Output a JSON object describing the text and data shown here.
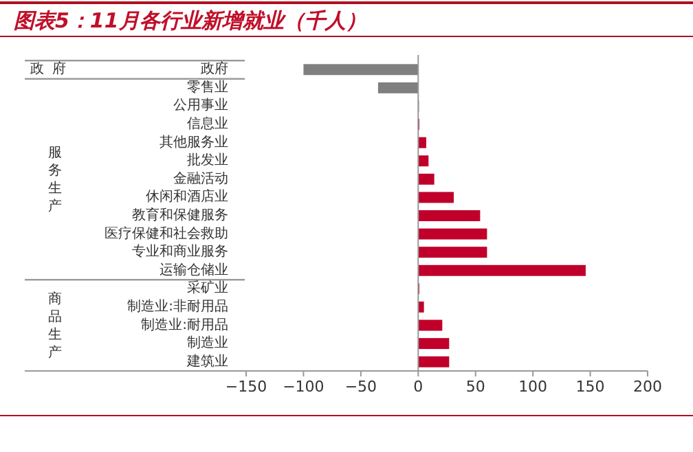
{
  "chart_data": {
    "type": "bar",
    "orientation": "horizontal",
    "title": "图表5：11月各行业新增就业（千人）",
    "categories": [
      "政府",
      "零售业",
      "公用事业",
      "信息业",
      "其他服务业",
      "批发业",
      "金融活动",
      "休闲和酒店业",
      "教育和保健服务",
      "医疗保健和社会救助",
      "专业和商业服务",
      "运输仓储业",
      "采矿业",
      "制造业:非耐用品",
      "制造业:耐用品",
      "制造业",
      "建筑业"
    ],
    "values": [
      -100,
      -35,
      0,
      1,
      7,
      9,
      14,
      31,
      54,
      60,
      60,
      146,
      1,
      5,
      21,
      27,
      27
    ],
    "colors": [
      "#7f7f7f",
      "#7f7f7f",
      "#7f7f7f",
      "#c0002a",
      "#c0002a",
      "#c0002a",
      "#c0002a",
      "#c0002a",
      "#c0002a",
      "#c0002a",
      "#c0002a",
      "#c0002a",
      "#c0002a",
      "#c0002a",
      "#c0002a",
      "#c0002a",
      "#c0002a"
    ],
    "xlim": [
      -150,
      200
    ],
    "xticks": [
      -150,
      -100,
      -50,
      0,
      50,
      100,
      150,
      200
    ],
    "annotations": [
      "政府",
      "服务生产",
      "商品生产"
    ]
  }
}
